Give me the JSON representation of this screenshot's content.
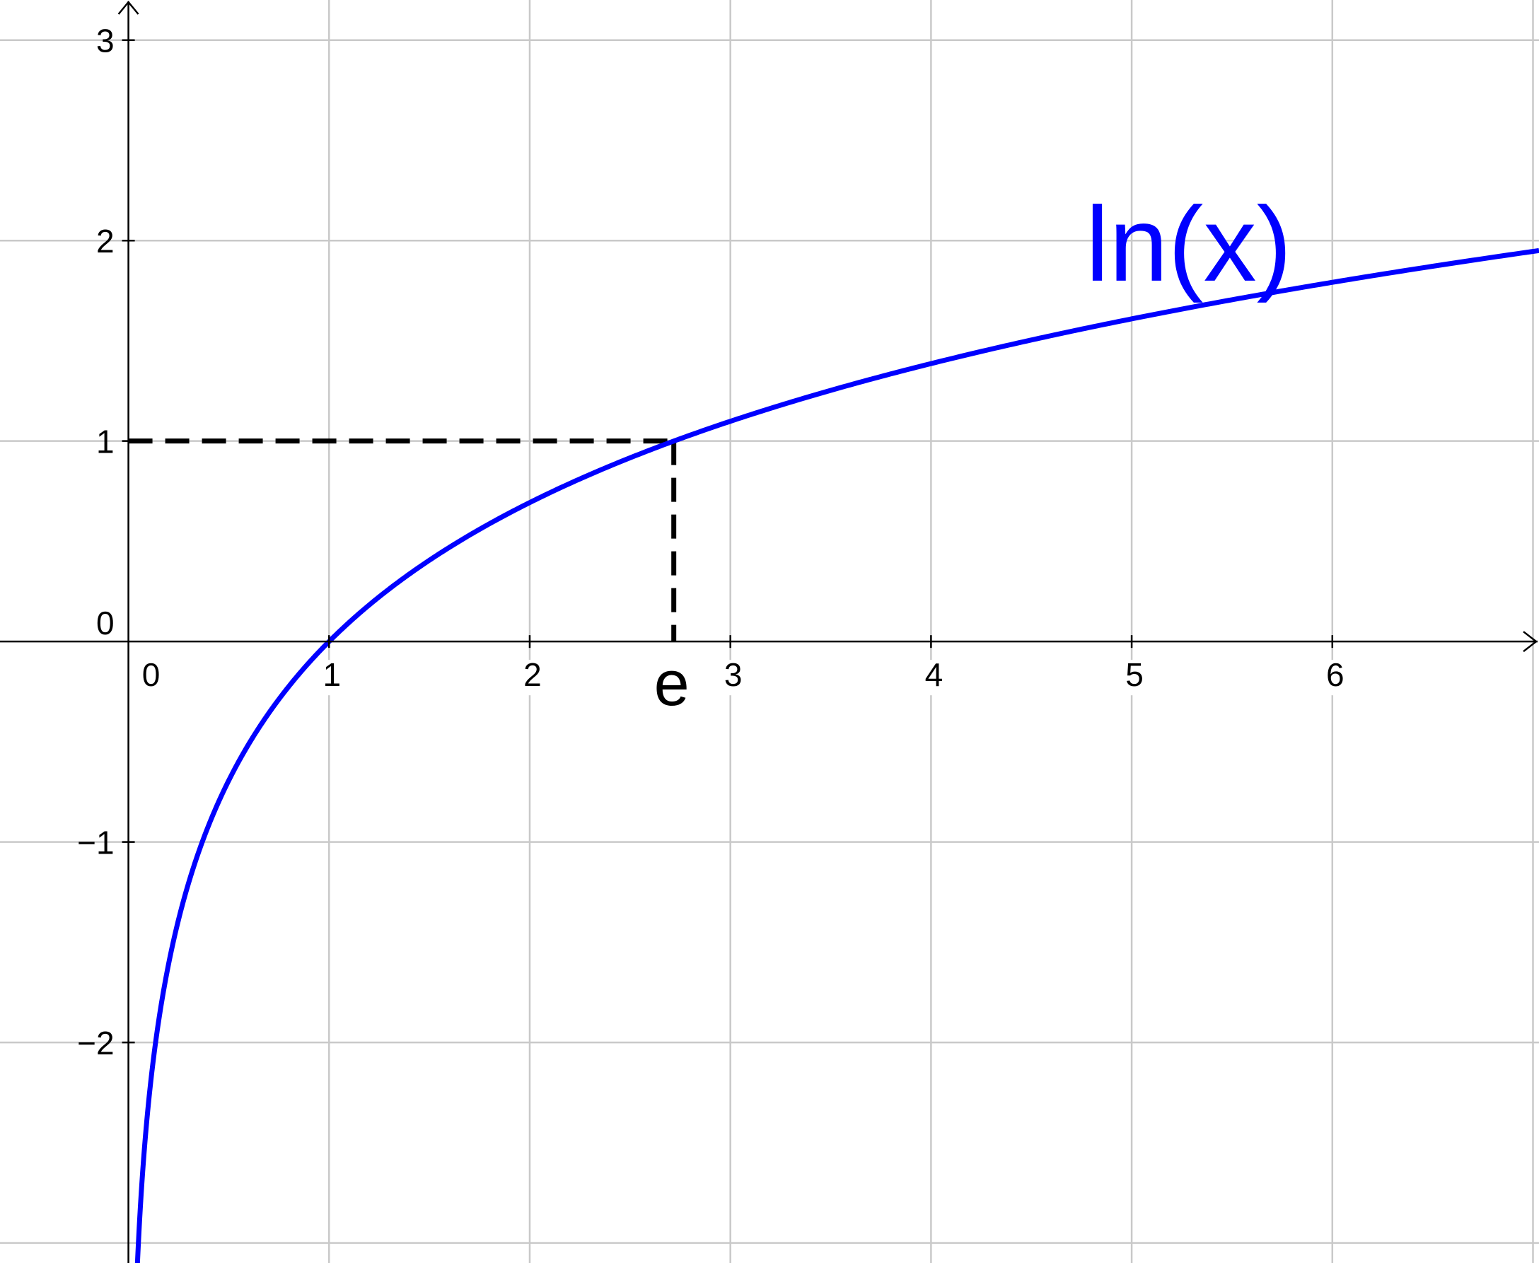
{
  "chart_data": {
    "type": "line",
    "title": "",
    "xlabel": "",
    "ylabel": "",
    "xlim": [
      -0.64,
      7.03
    ],
    "ylim": [
      -3.1,
      3.2
    ],
    "grid": true,
    "x_ticks": [
      0,
      1,
      2,
      3,
      4,
      5,
      6
    ],
    "y_ticks": [
      -2,
      -1,
      0,
      1,
      2,
      3
    ],
    "x_tick_labels": [
      "0",
      "1",
      "2",
      "3",
      "4",
      "5",
      "6"
    ],
    "y_tick_labels": [
      "−2",
      "−1",
      "0",
      "1",
      "2",
      "3"
    ],
    "series": [
      {
        "name": "ln(x)",
        "function": "ln(x)",
        "color": "#0000ff",
        "x": [
          0.05,
          0.1,
          0.2,
          0.3,
          0.5,
          0.75,
          1,
          1.5,
          2,
          2.718,
          3,
          4,
          5,
          6,
          7
        ],
        "y": [
          -3.0,
          -2.3026,
          -1.6094,
          -1.204,
          -0.6931,
          -0.2877,
          0,
          0.4055,
          0.6931,
          1,
          1.0986,
          1.3863,
          1.6094,
          1.7918,
          1.9459
        ]
      }
    ],
    "annotations": {
      "curve_label": {
        "text": "ln(x)",
        "color": "#0000ff"
      },
      "marker_point": {
        "x": 2.718,
        "y": 1,
        "x_label": "e",
        "line_style": "dashed",
        "color": "#000000"
      }
    }
  }
}
